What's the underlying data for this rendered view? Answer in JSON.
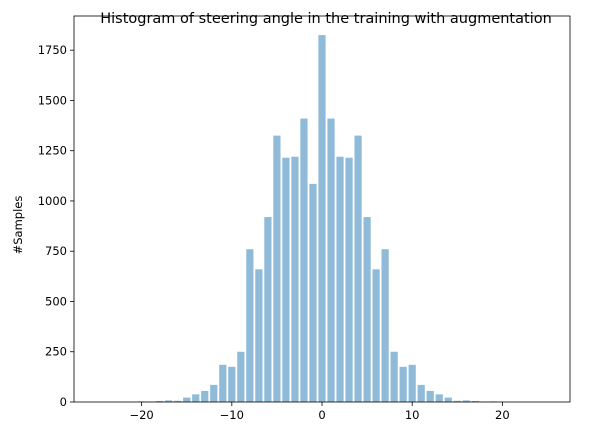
{
  "chart_data": {
    "type": "bar",
    "title": "Histogram of steering angle in the training with augmentation",
    "xlabel": "",
    "ylabel": "#Samples",
    "xlim": [
      -27.5,
      27.5
    ],
    "ylim": [
      0,
      1920
    ],
    "x_ticks": [
      -20,
      -10,
      0,
      10,
      20
    ],
    "y_ticks": [
      0,
      250,
      500,
      750,
      1000,
      1250,
      1500,
      1750
    ],
    "bar_width": 0.8,
    "bar_color": "#8fbbd9",
    "grid": false,
    "x": [
      -24,
      -23,
      -22,
      -21,
      -20,
      -19,
      -18,
      -17,
      -16,
      -15,
      -14,
      -13,
      -12,
      -11,
      -10,
      -9,
      -8,
      -7,
      -6,
      -5,
      -4,
      -3,
      -2,
      -1,
      0,
      1,
      2,
      3,
      4,
      5,
      6,
      7,
      8,
      9,
      10,
      11,
      12,
      13,
      14,
      15,
      16,
      17,
      18,
      19,
      20,
      21,
      22,
      23,
      24
    ],
    "values": [
      0,
      0,
      0,
      0,
      3,
      2,
      5,
      8,
      6,
      22,
      38,
      55,
      85,
      185,
      175,
      250,
      760,
      660,
      920,
      1325,
      1215,
      1220,
      1410,
      1085,
      1825,
      1410,
      1220,
      1215,
      1325,
      920,
      660,
      760,
      250,
      175,
      185,
      85,
      55,
      38,
      22,
      6,
      8,
      5,
      2,
      3,
      0,
      0,
      0,
      0,
      0
    ]
  }
}
